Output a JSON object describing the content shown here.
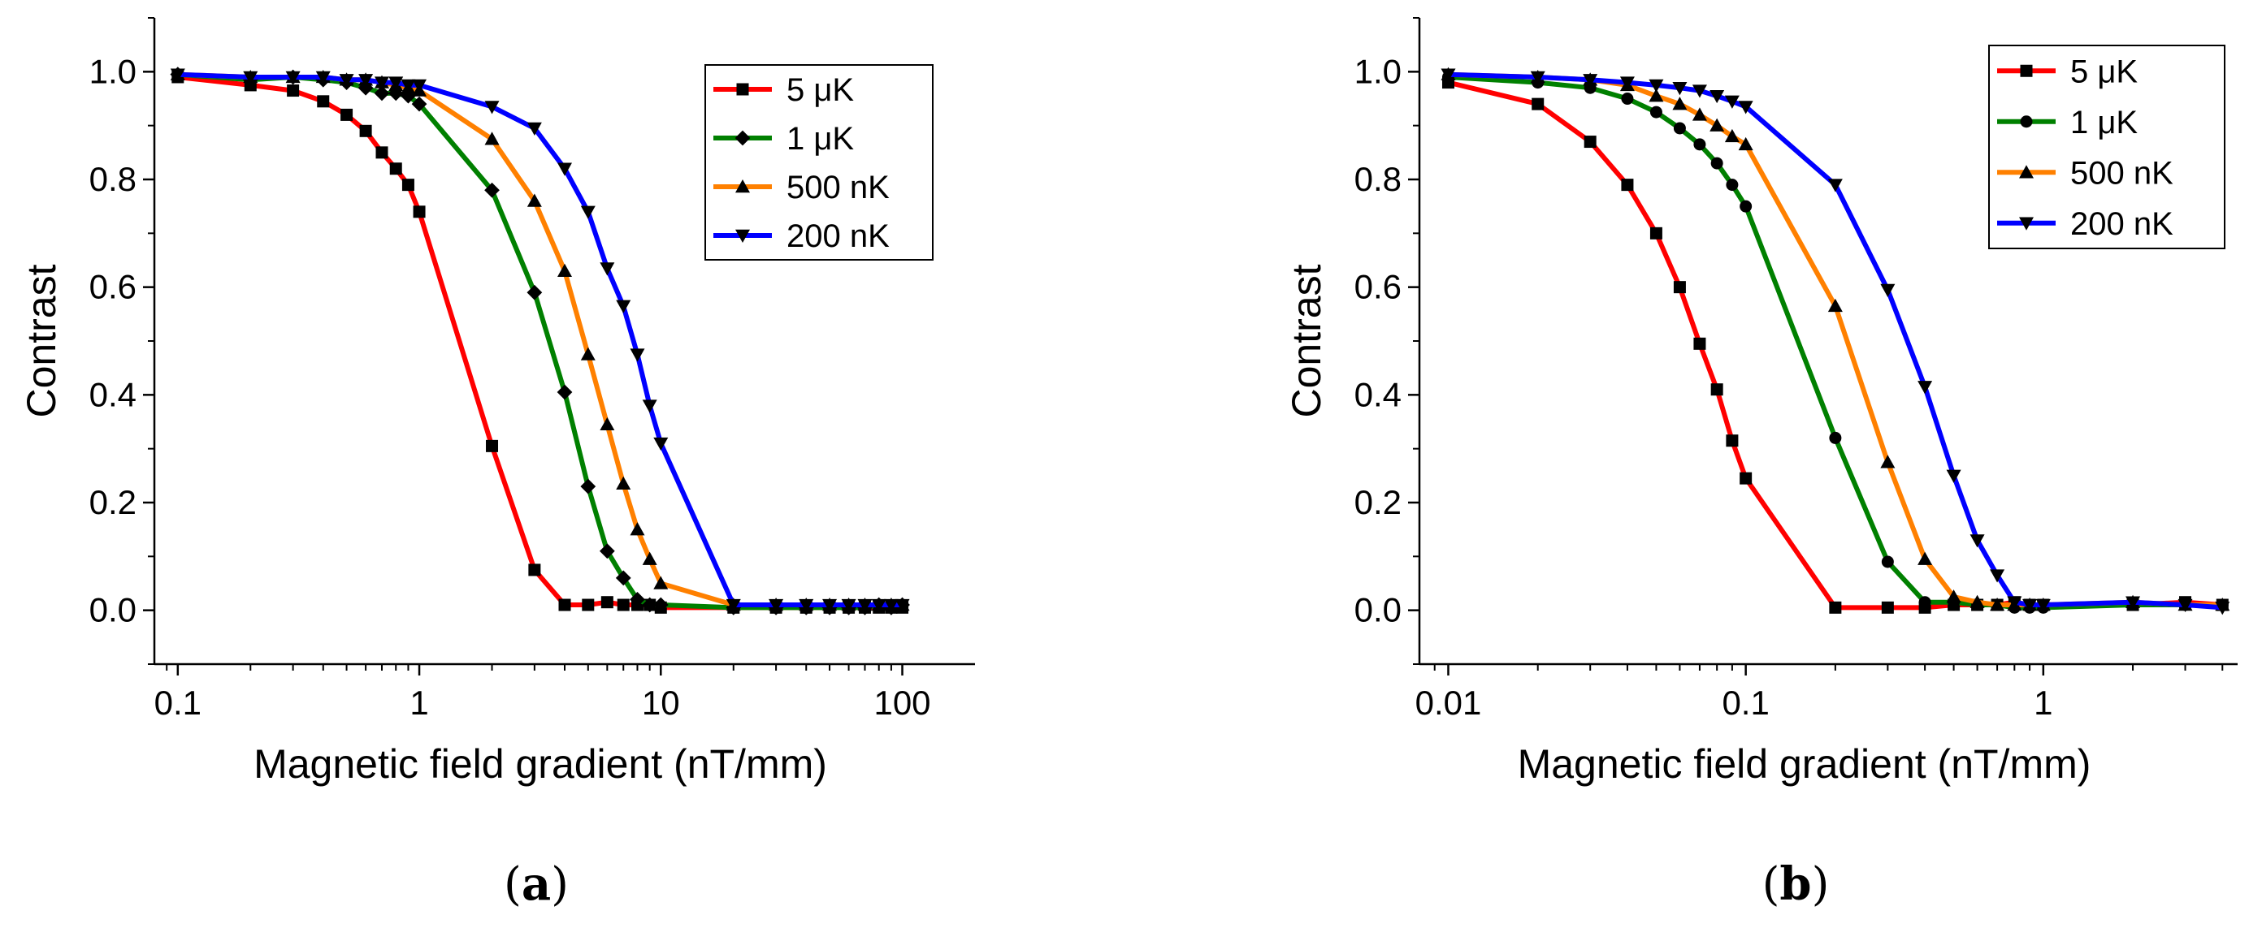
{
  "chart_data": [
    {
      "type": "line",
      "xscale": "log",
      "xlim": [
        0.08,
        200
      ],
      "ylim": [
        -0.1,
        1.1
      ],
      "xticks": [
        0.1,
        1,
        10,
        100
      ],
      "xtick_labels": [
        "0.1",
        "1",
        "10",
        "100"
      ],
      "yticks": [
        0.0,
        0.2,
        0.4,
        0.6,
        0.8,
        1.0
      ],
      "ytick_labels": [
        "0.0",
        "0.2",
        "0.4",
        "0.6",
        "0.8",
        "1.0"
      ],
      "xlabel": "Magnetic field gradient (nT/mm)",
      "ylabel": "Contrast",
      "caption": "a",
      "legend_position": "top-right",
      "series": [
        {
          "name": "5 μK",
          "color": "#ff0000",
          "marker": "square",
          "x": [
            0.1,
            0.2,
            0.3,
            0.4,
            0.5,
            0.6,
            0.7,
            0.8,
            0.9,
            1,
            2,
            3,
            4,
            5,
            6,
            7,
            8,
            9,
            10,
            20,
            30,
            40,
            50,
            60,
            70,
            80,
            90,
            100
          ],
          "y": [
            0.99,
            0.975,
            0.965,
            0.945,
            0.92,
            0.89,
            0.85,
            0.82,
            0.79,
            0.74,
            0.305,
            0.075,
            0.01,
            0.01,
            0.015,
            0.01,
            0.01,
            0.01,
            0.005,
            0.005,
            0.005,
            0.005,
            0.005,
            0.005,
            0.005,
            0.005,
            0.005,
            0.005
          ]
        },
        {
          "name": "1 μK",
          "color": "#008000",
          "marker": "diamond",
          "x": [
            0.1,
            0.2,
            0.3,
            0.4,
            0.5,
            0.6,
            0.7,
            0.8,
            0.9,
            1,
            2,
            3,
            4,
            5,
            6,
            7,
            8,
            9,
            10,
            20,
            30,
            40,
            50,
            60,
            70,
            80,
            90,
            100
          ],
          "y": [
            0.995,
            0.985,
            0.99,
            0.985,
            0.98,
            0.97,
            0.96,
            0.96,
            0.955,
            0.94,
            0.78,
            0.59,
            0.405,
            0.23,
            0.11,
            0.06,
            0.02,
            0.01,
            0.01,
            0.005,
            0.005,
            0.005,
            0.005,
            0.005,
            0.005,
            0.01,
            0.005,
            0.01
          ]
        },
        {
          "name": "500 nK",
          "color": "#ff8000",
          "marker": "triangle-up",
          "x": [
            0.1,
            0.2,
            0.3,
            0.4,
            0.5,
            0.6,
            0.7,
            0.8,
            0.9,
            1,
            2,
            3,
            4,
            5,
            6,
            7,
            8,
            9,
            10,
            20,
            30,
            40,
            50,
            60,
            70,
            80,
            90,
            100
          ],
          "y": [
            0.995,
            0.99,
            0.99,
            0.99,
            0.985,
            0.985,
            0.98,
            0.975,
            0.97,
            0.965,
            0.875,
            0.76,
            0.63,
            0.475,
            0.345,
            0.235,
            0.15,
            0.095,
            0.05,
            0.01,
            0.01,
            0.01,
            0.01,
            0.01,
            0.01,
            0.01,
            0.01,
            0.01
          ]
        },
        {
          "name": "200 nK",
          "color": "#0000ff",
          "marker": "triangle-down",
          "x": [
            0.1,
            0.2,
            0.3,
            0.4,
            0.5,
            0.6,
            0.7,
            0.8,
            0.9,
            1,
            2,
            3,
            4,
            5,
            6,
            7,
            8,
            9,
            10,
            20,
            30,
            40,
            50,
            60,
            70,
            80,
            90,
            100
          ],
          "y": [
            0.995,
            0.99,
            0.99,
            0.99,
            0.985,
            0.985,
            0.98,
            0.98,
            0.975,
            0.975,
            0.935,
            0.895,
            0.82,
            0.74,
            0.635,
            0.565,
            0.475,
            0.38,
            0.31,
            0.01,
            0.01,
            0.01,
            0.01,
            0.01,
            0.01,
            0.01,
            0.01,
            0.01
          ]
        }
      ]
    },
    {
      "type": "line",
      "xscale": "log",
      "xlim": [
        0.008,
        4.5
      ],
      "ylim": [
        -0.1,
        1.1
      ],
      "xticks": [
        0.01,
        0.1,
        1
      ],
      "xtick_labels": [
        "0.01",
        "0.1",
        "1"
      ],
      "yticks": [
        0.0,
        0.2,
        0.4,
        0.6,
        0.8,
        1.0
      ],
      "ytick_labels": [
        "0.0",
        "0.2",
        "0.4",
        "0.6",
        "0.8",
        "1.0"
      ],
      "xlabel": "Magnetic field gradient (nT/mm)",
      "ylabel": "Contrast",
      "caption": "b",
      "legend_position": "top-right",
      "series": [
        {
          "name": "5 μK",
          "color": "#ff0000",
          "marker": "square",
          "x": [
            0.01,
            0.02,
            0.03,
            0.04,
            0.05,
            0.06,
            0.07,
            0.08,
            0.09,
            0.1,
            0.2,
            0.3,
            0.4,
            0.5,
            0.6,
            0.7,
            0.8,
            0.9,
            1,
            2,
            3,
            4
          ],
          "y": [
            0.98,
            0.94,
            0.87,
            0.79,
            0.7,
            0.6,
            0.495,
            0.41,
            0.315,
            0.245,
            0.005,
            0.005,
            0.005,
            0.01,
            0.01,
            0.01,
            0.015,
            0.01,
            0.01,
            0.01,
            0.015,
            0.01
          ]
        },
        {
          "name": "1 μK",
          "color": "#008000",
          "marker": "circle",
          "x": [
            0.01,
            0.02,
            0.03,
            0.04,
            0.05,
            0.06,
            0.07,
            0.08,
            0.09,
            0.1,
            0.2,
            0.3,
            0.4,
            0.5,
            0.6,
            0.7,
            0.8,
            0.9,
            1,
            2,
            3,
            4
          ],
          "y": [
            0.99,
            0.98,
            0.97,
            0.95,
            0.925,
            0.895,
            0.865,
            0.83,
            0.79,
            0.75,
            0.32,
            0.09,
            0.015,
            0.015,
            0.01,
            0.01,
            0.005,
            0.005,
            0.005,
            0.01,
            0.01,
            0.01
          ]
        },
        {
          "name": "500 nK",
          "color": "#ff8000",
          "marker": "triangle-up",
          "x": [
            0.01,
            0.02,
            0.03,
            0.04,
            0.05,
            0.06,
            0.07,
            0.08,
            0.09,
            0.1,
            0.2,
            0.3,
            0.4,
            0.5,
            0.6,
            0.7,
            0.8,
            0.9,
            1,
            2,
            3,
            4
          ],
          "y": [
            0.995,
            0.99,
            0.985,
            0.975,
            0.955,
            0.94,
            0.92,
            0.9,
            0.88,
            0.865,
            0.565,
            0.275,
            0.095,
            0.025,
            0.015,
            0.01,
            0.01,
            0.01,
            0.01,
            0.015,
            0.01,
            0.01
          ]
        },
        {
          "name": "200 nK",
          "color": "#0000ff",
          "marker": "triangle-down",
          "x": [
            0.01,
            0.02,
            0.03,
            0.04,
            0.05,
            0.06,
            0.07,
            0.08,
            0.09,
            0.1,
            0.2,
            0.3,
            0.4,
            0.5,
            0.6,
            0.7,
            0.8,
            0.9,
            1,
            2,
            3,
            4
          ],
          "y": [
            0.995,
            0.99,
            0.985,
            0.98,
            0.975,
            0.97,
            0.965,
            0.955,
            0.945,
            0.935,
            0.79,
            0.595,
            0.415,
            0.25,
            0.13,
            0.065,
            0.015,
            0.01,
            0.01,
            0.015,
            0.01,
            0.005
          ]
        }
      ]
    }
  ]
}
